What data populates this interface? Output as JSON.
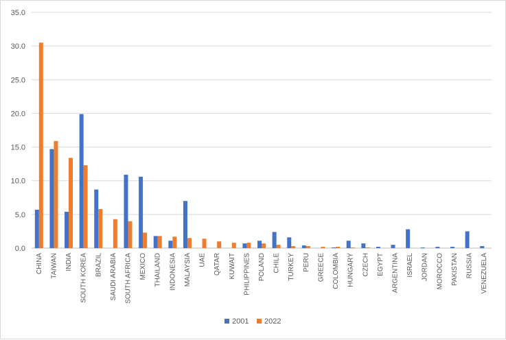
{
  "chart_data": {
    "type": "bar",
    "title": "",
    "xlabel": "",
    "ylabel": "",
    "ylim": [
      0,
      35
    ],
    "yticks": [
      "0.0",
      "5.0",
      "10.0",
      "15.0",
      "20.0",
      "25.0",
      "30.0",
      "35.0"
    ],
    "grid": "horizontal",
    "legend_position": "bottom",
    "categories": [
      "CHINA",
      "TAIWAN",
      "INDIA",
      "SOUTH KOREA",
      "BRAZIL",
      "SAUDI ARABIA",
      "SOUTH AFRICA",
      "MEXICO",
      "THAILAND",
      "INDONESIA",
      "MALAYSIA",
      "UAE",
      "QATAR",
      "KUWAIT",
      "PHILIPPINES",
      "POLAND",
      "CHILE",
      "TURKEY",
      "PERU",
      "GREECE",
      "COLOMBIA",
      "HUNGARY",
      "CZECH",
      "EGYPT",
      "ARGENTINA",
      "ISRAEL",
      "JORDAN",
      "MOROCCO",
      "PAKISTAN",
      "RUSSIA",
      "VENEZUELA"
    ],
    "series": [
      {
        "name": "2001",
        "color": "#4472c4",
        "values": [
          5.7,
          14.7,
          5.4,
          19.9,
          8.7,
          0.0,
          10.9,
          10.6,
          1.8,
          1.1,
          7.0,
          0.0,
          0.0,
          0.0,
          0.7,
          1.1,
          2.4,
          1.6,
          0.4,
          0.0,
          0.1,
          1.1,
          0.7,
          0.2,
          0.5,
          2.8,
          0.1,
          0.2,
          0.2,
          2.5,
          0.3
        ]
      },
      {
        "name": "2022",
        "color": "#ed7d31",
        "values": [
          30.5,
          15.9,
          13.4,
          12.3,
          5.8,
          4.3,
          4.0,
          2.3,
          1.8,
          1.7,
          1.5,
          1.4,
          1.0,
          0.8,
          0.8,
          0.7,
          0.5,
          0.3,
          0.3,
          0.2,
          0.2,
          0.1,
          0.1,
          0.0,
          0.0,
          0.0,
          0.0,
          0.0,
          0.0,
          0.0,
          0.0
        ]
      }
    ]
  }
}
